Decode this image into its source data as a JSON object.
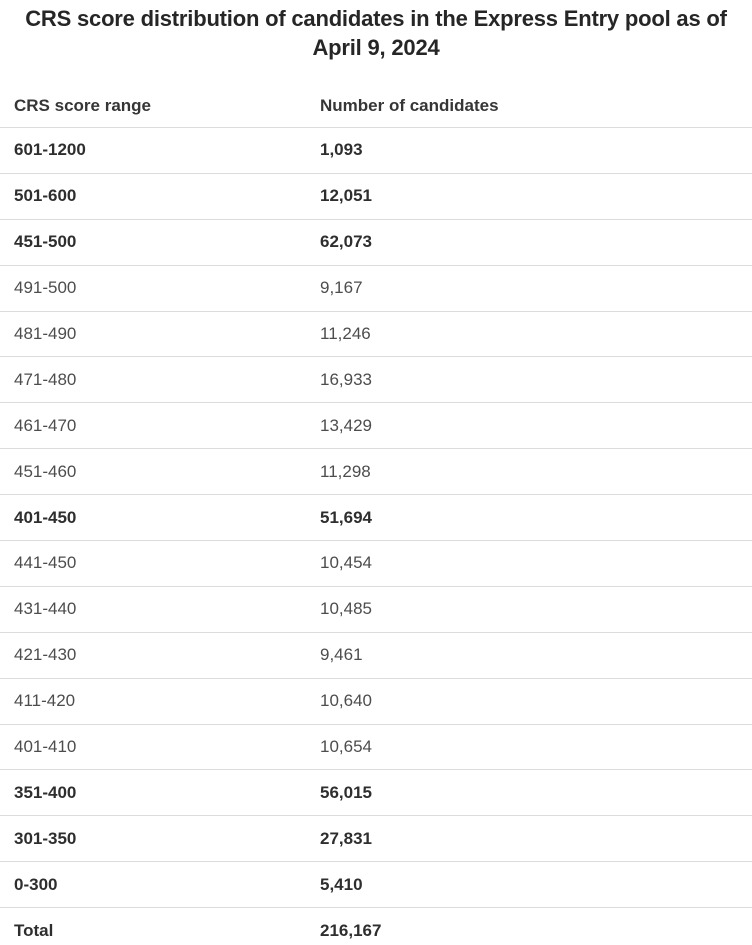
{
  "title": "CRS score distribution of candidates in the Express Entry pool as of April 9, 2024",
  "table": {
    "columns": [
      "CRS score range",
      "Number of candidates"
    ],
    "rows": [
      {
        "range": "601-1200",
        "count": "1,093",
        "bold": true
      },
      {
        "range": "501-600",
        "count": "12,051",
        "bold": true
      },
      {
        "range": "451-500",
        "count": "62,073",
        "bold": true
      },
      {
        "range": "491-500",
        "count": "9,167",
        "bold": false
      },
      {
        "range": "481-490",
        "count": "11,246",
        "bold": false
      },
      {
        "range": "471-480",
        "count": "16,933",
        "bold": false
      },
      {
        "range": "461-470",
        "count": "13,429",
        "bold": false
      },
      {
        "range": "451-460",
        "count": "11,298",
        "bold": false
      },
      {
        "range": "401-450",
        "count": "51,694",
        "bold": true
      },
      {
        "range": "441-450",
        "count": "10,454",
        "bold": false
      },
      {
        "range": "431-440",
        "count": "10,485",
        "bold": false
      },
      {
        "range": "421-430",
        "count": "9,461",
        "bold": false
      },
      {
        "range": "411-420",
        "count": "10,640",
        "bold": false
      },
      {
        "range": "401-410",
        "count": "10,654",
        "bold": false
      },
      {
        "range": "351-400",
        "count": "56,015",
        "bold": true
      },
      {
        "range": "301-350",
        "count": "27,831",
        "bold": true
      },
      {
        "range": "0-300",
        "count": "5,410",
        "bold": true
      },
      {
        "range": "Total",
        "count": "216,167",
        "bold": true
      }
    ]
  },
  "colors": {
    "background": "#ffffff",
    "title_text": "#262626",
    "header_text": "#363636",
    "bold_row_text": "#2e2e2e",
    "regular_row_text": "#4d4d4d",
    "divider": "#dcdcdc"
  },
  "chart_data": {
    "type": "table",
    "title": "CRS score distribution of candidates in the Express Entry pool as of April 9, 2024",
    "columns": [
      "CRS score range",
      "Number of candidates"
    ],
    "rows": [
      [
        "601-1200",
        1093
      ],
      [
        "501-600",
        12051
      ],
      [
        "451-500",
        62073
      ],
      [
        "491-500",
        9167
      ],
      [
        "481-490",
        11246
      ],
      [
        "471-480",
        16933
      ],
      [
        "461-470",
        13429
      ],
      [
        "451-460",
        11298
      ],
      [
        "401-450",
        51694
      ],
      [
        "441-450",
        10454
      ],
      [
        "431-440",
        10485
      ],
      [
        "421-430",
        9461
      ],
      [
        "411-420",
        10640
      ],
      [
        "401-410",
        10654
      ],
      [
        "351-400",
        56015
      ],
      [
        "301-350",
        27831
      ],
      [
        "0-300",
        5410
      ]
    ],
    "total": 216167,
    "summary_rows": [
      "601-1200",
      "501-600",
      "451-500",
      "401-450",
      "351-400",
      "301-350",
      "0-300",
      "Total"
    ],
    "grid": "horizontal-dividers",
    "legend": "none"
  }
}
